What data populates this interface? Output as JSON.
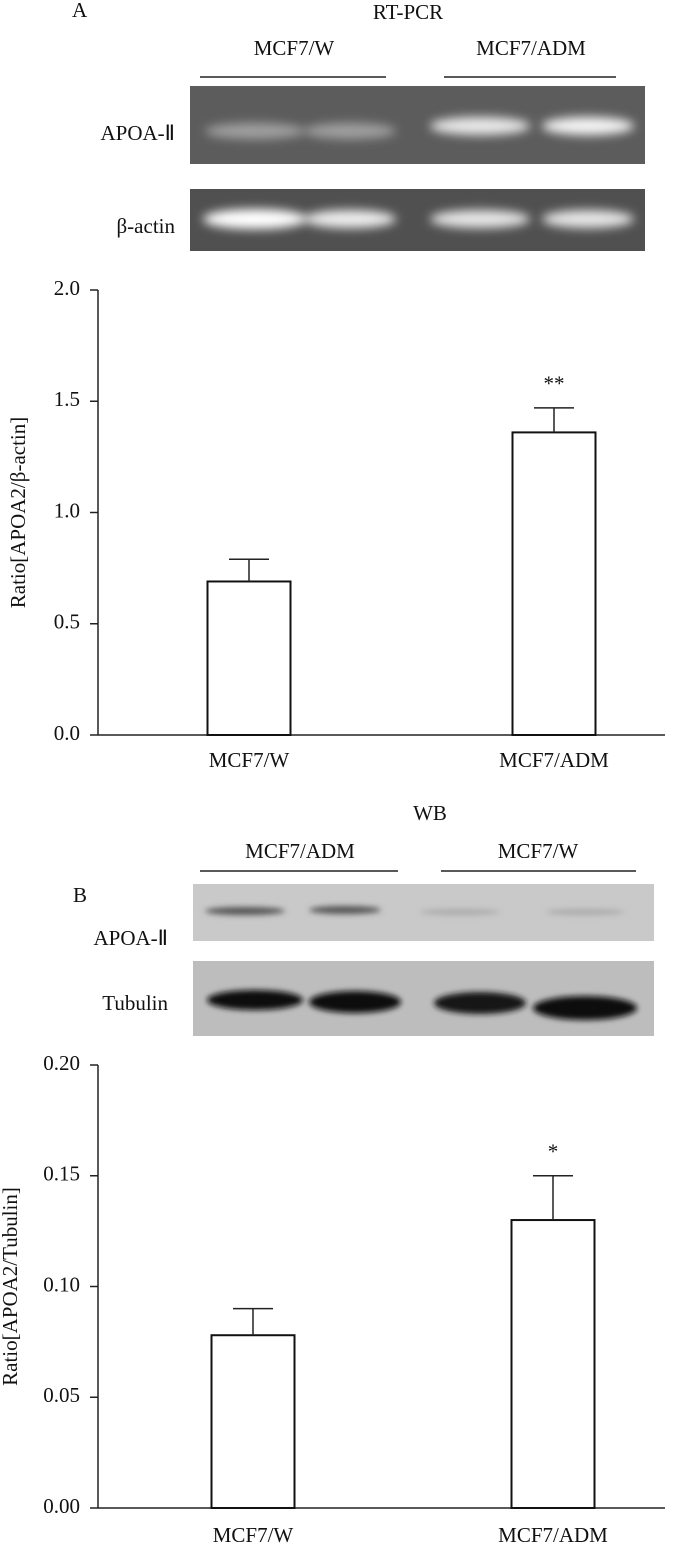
{
  "chart_data": [
    {
      "type": "bar",
      "panel": "A",
      "blot_title": "RT-PCR",
      "blot_groups": [
        "MCF7/W",
        "MCF7/ADM"
      ],
      "blot_rows": [
        "APOA-Ⅱ",
        "β-actin"
      ],
      "y_label": "Ratio[APOA2/β-actin]",
      "categories": [
        "MCF7/W",
        "MCF7/ADM"
      ],
      "values": [
        0.69,
        1.36
      ],
      "errors": [
        0.1,
        0.11
      ],
      "significance": [
        null,
        "**"
      ],
      "color": "#ffffff",
      "ylim": [
        0,
        2
      ],
      "yticks": [
        {
          "value": 0,
          "label": "0.0"
        },
        0.5,
        {
          "value": 1,
          "label": "1.0"
        },
        1.5,
        {
          "value": 2,
          "label": "2.0"
        }
      ]
    },
    {
      "type": "bar",
      "panel": "B",
      "blot_title": "WB",
      "blot_groups": [
        "MCF7/ADM",
        "MCF7/W"
      ],
      "blot_rows": [
        "APOA-Ⅱ",
        "Tubulin"
      ],
      "y_label": "Ratio[APOA2/Tubulin]",
      "categories": [
        "MCF7/W",
        "MCF7/ADM"
      ],
      "values": [
        0.078,
        0.13
      ],
      "errors": [
        0.012,
        0.02
      ],
      "significance": [
        null,
        "*"
      ],
      "color": "#ffffff",
      "ylim": [
        0,
        0.2
      ],
      "yticks": [
        {
          "value": 0,
          "label": "0.00"
        },
        {
          "value": 0.05,
          "label": "0.05"
        },
        {
          "value": 0.1,
          "label": "0.10"
        },
        {
          "value": 0.15,
          "label": "0.15"
        },
        {
          "value": 0.2,
          "label": "0.20"
        }
      ]
    }
  ]
}
